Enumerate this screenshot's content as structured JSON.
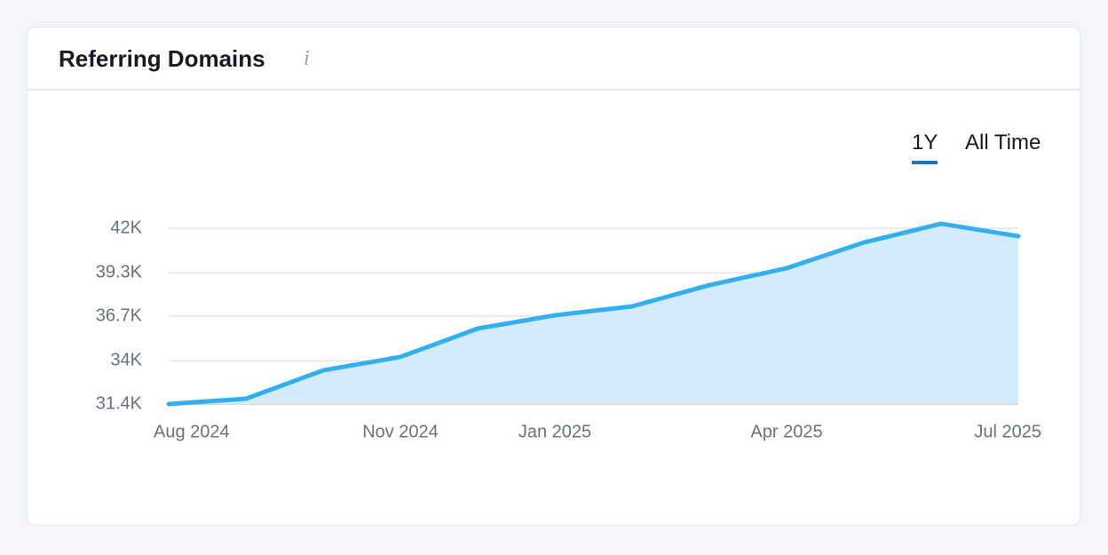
{
  "header": {
    "title": "Referring Domains",
    "info": "i"
  },
  "controls": [
    "1Y",
    "All Time"
  ],
  "chart_data": {
    "type": "area",
    "categories": [
      "Aug 2024",
      null,
      null,
      "Nov 2024",
      null,
      "Jan 2025",
      null,
      null,
      "Apr 2025",
      null,
      null,
      "Jul 2025"
    ],
    "series": [
      {
        "name": "Referring Domains",
        "color": "#33aff0",
        "fill": "#d4ebfc",
        "values": [
          31400,
          31720,
          33430,
          34240,
          35950,
          36750,
          37290,
          38570,
          39590,
          41140,
          42270,
          41520
        ]
      }
    ],
    "ylim": [
      31400,
      42000
    ],
    "yticks": [
      {
        "value": 31400,
        "label": "31.4K"
      },
      {
        "value": 34000,
        "label": "34K"
      },
      {
        "value": 36700,
        "label": "36.7K"
      },
      {
        "value": 39300,
        "label": "39.3K"
      },
      {
        "value": 42000,
        "label": "42K"
      }
    ],
    "grid": true
  }
}
